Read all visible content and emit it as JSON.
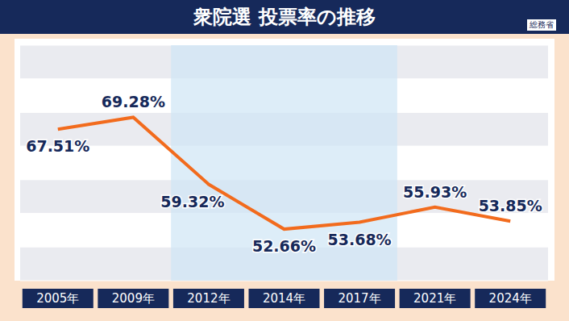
{
  "chart_data": {
    "type": "line",
    "title": "衆院選 投票率の推移",
    "source": "総務省",
    "categories": [
      "2005年",
      "2009年",
      "2012年",
      "2014年",
      "2017年",
      "2021年",
      "2024年"
    ],
    "values": [
      67.51,
      69.28,
      59.32,
      52.66,
      53.68,
      55.93,
      53.85
    ],
    "value_labels": [
      "67.51%",
      "69.28%",
      "59.32%",
      "52.66%",
      "53.68%",
      "55.93%",
      "53.85%"
    ],
    "color": "#f26b1d",
    "ylim": [
      45,
      80
    ],
    "yticks": [
      45,
      50,
      55,
      60,
      65,
      70,
      75,
      80
    ],
    "grid": true,
    "data_labels": true,
    "tick_labels": "x",
    "highlight": [
      "2012年",
      "2017年"
    ]
  }
}
